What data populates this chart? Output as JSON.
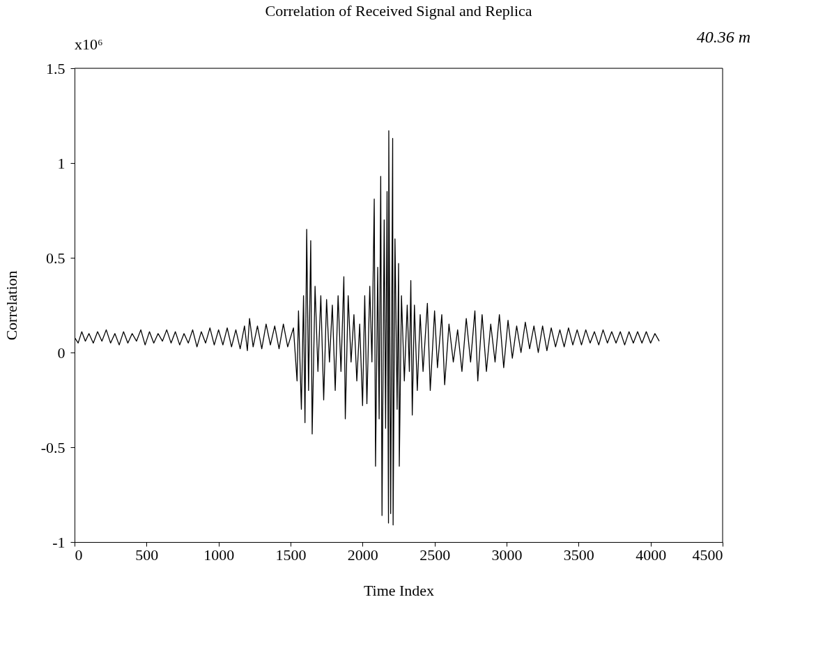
{
  "chart_data": {
    "type": "line",
    "title": "Correlation of Received Signal and Replica",
    "xlabel": "Time Index",
    "ylabel": "Correlation",
    "annotations": [
      "x10⁶",
      "40.36 m"
    ],
    "xlim": [
      0,
      4500
    ],
    "xticks": [
      0,
      500,
      1000,
      1500,
      2000,
      2500,
      3000,
      3500,
      4000,
      4500
    ],
    "ylim": [
      -1,
      1.5
    ],
    "yticks": [
      -1,
      -0.5,
      0,
      0.5,
      1,
      1.5
    ],
    "grid": false,
    "legend": false,
    "marker": "none",
    "line_style": "solid",
    "series": [
      {
        "color": "#000000",
        "x": [
          0,
          25,
          50,
          75,
          100,
          130,
          160,
          190,
          220,
          250,
          280,
          310,
          340,
          370,
          400,
          430,
          460,
          490,
          520,
          550,
          580,
          610,
          640,
          670,
          700,
          730,
          760,
          790,
          820,
          850,
          880,
          910,
          940,
          970,
          1000,
          1030,
          1060,
          1090,
          1120,
          1150,
          1180,
          1200,
          1215,
          1240,
          1270,
          1300,
          1330,
          1360,
          1390,
          1420,
          1450,
          1480,
          1520,
          1545,
          1555,
          1575,
          1590,
          1600,
          1612,
          1625,
          1640,
          1650,
          1670,
          1690,
          1710,
          1730,
          1750,
          1770,
          1790,
          1810,
          1830,
          1850,
          1870,
          1880,
          1900,
          1920,
          1940,
          1960,
          1980,
          2000,
          2015,
          2030,
          2050,
          2065,
          2081,
          2090,
          2105,
          2115,
          2126,
          2135,
          2150,
          2160,
          2170,
          2180,
          2182,
          2195,
          2209,
          2212,
          2225,
          2240,
          2250,
          2255,
          2270,
          2290,
          2310,
          2325,
          2335,
          2345,
          2360,
          2380,
          2400,
          2420,
          2450,
          2470,
          2500,
          2520,
          2550,
          2570,
          2600,
          2630,
          2660,
          2690,
          2720,
          2750,
          2780,
          2800,
          2830,
          2860,
          2890,
          2920,
          2950,
          2980,
          3010,
          3040,
          3070,
          3100,
          3130,
          3160,
          3190,
          3220,
          3250,
          3280,
          3310,
          3340,
          3370,
          3400,
          3430,
          3460,
          3490,
          3520,
          3550,
          3580,
          3610,
          3640,
          3670,
          3700,
          3730,
          3760,
          3790,
          3820,
          3850,
          3880,
          3910,
          3940,
          3970,
          4000,
          4030,
          4060
        ],
        "values": [
          0.08,
          0.05,
          0.11,
          0.06,
          0.1,
          0.05,
          0.11,
          0.06,
          0.12,
          0.05,
          0.1,
          0.04,
          0.11,
          0.05,
          0.1,
          0.06,
          0.12,
          0.04,
          0.11,
          0.05,
          0.1,
          0.06,
          0.12,
          0.05,
          0.11,
          0.04,
          0.1,
          0.05,
          0.12,
          0.03,
          0.11,
          0.05,
          0.13,
          0.04,
          0.12,
          0.04,
          0.13,
          0.03,
          0.12,
          0.02,
          0.14,
          0.01,
          0.18,
          0.03,
          0.14,
          0.02,
          0.15,
          0.04,
          0.14,
          0.02,
          0.15,
          0.03,
          0.13,
          -0.15,
          0.22,
          -0.3,
          0.3,
          -0.37,
          0.65,
          -0.2,
          0.59,
          -0.43,
          0.35,
          -0.1,
          0.3,
          -0.25,
          0.28,
          -0.05,
          0.25,
          -0.2,
          0.3,
          -0.1,
          0.4,
          -0.35,
          0.3,
          -0.05,
          0.2,
          -0.15,
          0.15,
          -0.28,
          0.3,
          -0.27,
          0.35,
          -0.05,
          0.81,
          -0.6,
          0.45,
          -0.35,
          0.93,
          -0.86,
          0.7,
          -0.4,
          0.85,
          -0.9,
          1.17,
          -0.85,
          1.13,
          -0.91,
          0.6,
          -0.3,
          0.47,
          -0.6,
          0.3,
          -0.15,
          0.25,
          -0.1,
          0.38,
          -0.33,
          0.25,
          -0.2,
          0.2,
          -0.1,
          0.26,
          -0.2,
          0.22,
          -0.08,
          0.2,
          -0.17,
          0.15,
          -0.05,
          0.12,
          -0.1,
          0.18,
          -0.05,
          0.22,
          -0.15,
          0.2,
          -0.1,
          0.15,
          -0.05,
          0.2,
          -0.08,
          0.17,
          -0.03,
          0.14,
          0.0,
          0.16,
          0.02,
          0.14,
          0.0,
          0.14,
          0.01,
          0.13,
          0.03,
          0.12,
          0.03,
          0.13,
          0.04,
          0.12,
          0.04,
          0.12,
          0.05,
          0.11,
          0.04,
          0.12,
          0.05,
          0.11,
          0.05,
          0.11,
          0.04,
          0.11,
          0.05,
          0.11,
          0.05,
          0.11,
          0.05,
          0.1,
          0.06
        ]
      }
    ]
  }
}
